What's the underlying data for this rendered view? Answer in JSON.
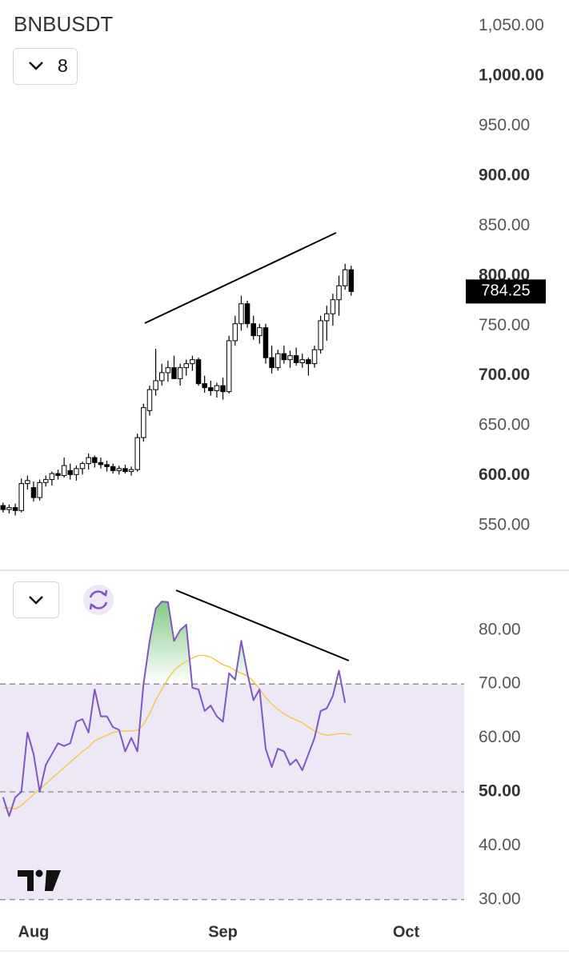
{
  "chart_data": [
    {
      "type": "candlestick",
      "title": "BNBUSDT",
      "indicator_count": "8",
      "categories": [
        null,
        null,
        null,
        null,
        null,
        "Aug",
        null,
        null,
        null,
        null,
        null,
        null,
        null,
        null,
        null,
        null,
        null,
        null,
        null,
        null,
        null,
        null,
        null,
        null,
        null,
        null,
        null,
        null,
        null,
        null,
        null,
        null,
        null,
        null,
        null,
        null,
        "Sep",
        null,
        null,
        null,
        null,
        null,
        null,
        null,
        null,
        null,
        null,
        null,
        null,
        null,
        null,
        null,
        null,
        null,
        null,
        null,
        null,
        null,
        null,
        null,
        null,
        null,
        null,
        null,
        null,
        null,
        "Oct"
      ],
      "open": [
        570,
        566,
        568,
        565,
        592,
        588,
        578,
        593,
        596,
        602,
        600,
        605,
        601,
        607,
        612,
        618,
        613,
        611,
        609,
        605,
        607,
        604,
        606,
        638,
        665,
        686,
        695,
        703,
        708,
        697,
        708,
        712,
        716,
        692,
        688,
        685,
        690,
        684,
        735,
        752,
        772,
        752,
        740,
        748,
        718,
        708,
        722,
        716,
        720,
        713,
        716,
        712,
        726,
        755,
        762,
        776,
        790,
        806,
        null,
        null,
        null,
        null,
        null,
        null,
        null,
        null,
        null
      ],
      "high": [
        573,
        571,
        572,
        597,
        600,
        594,
        596,
        600,
        604,
        606,
        618,
        612,
        610,
        614,
        622,
        620,
        618,
        615,
        612,
        610,
        611,
        609,
        642,
        672,
        690,
        727,
        712,
        715,
        720,
        712,
        716,
        720,
        718,
        700,
        695,
        693,
        698,
        740,
        760,
        780,
        775,
        760,
        752,
        752,
        730,
        726,
        730,
        725,
        728,
        722,
        718,
        730,
        760,
        770,
        782,
        800,
        812,
        810,
        null,
        null,
        null,
        null,
        null,
        null,
        null,
        null,
        null
      ],
      "low": [
        563,
        562,
        560,
        563,
        586,
        574,
        575,
        589,
        590,
        596,
        598,
        596,
        595,
        601,
        606,
        608,
        607,
        604,
        602,
        601,
        602,
        600,
        604,
        634,
        660,
        680,
        690,
        694,
        698,
        690,
        700,
        705,
        690,
        683,
        680,
        678,
        676,
        682,
        730,
        745,
        748,
        736,
        732,
        712,
        702,
        705,
        712,
        708,
        710,
        708,
        700,
        708,
        722,
        735,
        750,
        760,
        786,
        780,
        null,
        null,
        null,
        null,
        null,
        null,
        null,
        null,
        null
      ],
      "close": [
        566,
        568,
        565,
        592,
        595,
        578,
        593,
        596,
        602,
        600,
        610,
        601,
        607,
        612,
        618,
        613,
        611,
        609,
        605,
        607,
        604,
        606,
        638,
        668,
        686,
        695,
        703,
        708,
        697,
        708,
        712,
        716,
        692,
        688,
        685,
        690,
        684,
        735,
        752,
        772,
        752,
        740,
        748,
        718,
        708,
        722,
        716,
        720,
        713,
        716,
        712,
        726,
        755,
        762,
        776,
        790,
        806,
        784.25,
        null,
        null,
        null,
        null,
        null,
        null,
        null,
        null,
        null
      ],
      "color_up": "#ffffff",
      "color_down": "#000000",
      "last_price": 784.25,
      "ylim": [
        506,
        1076
      ],
      "yticks": [
        {
          "value": 550,
          "label": "550.00"
        },
        {
          "value": 600,
          "label": "600.00",
          "bold": true
        },
        {
          "value": 650,
          "label": "650.00"
        },
        {
          "value": 700,
          "label": "700.00",
          "bold": true
        },
        {
          "value": 750,
          "label": "750.00"
        },
        {
          "value": 800,
          "label": "800.00",
          "bold": true
        },
        {
          "value": 850,
          "label": "850.00"
        },
        {
          "value": 900,
          "label": "900.00",
          "bold": true
        },
        {
          "value": 950,
          "label": "950.00"
        },
        {
          "value": 1000,
          "label": "1,000.00",
          "bold": true
        },
        {
          "value": 1050,
          "label": "1,050.00"
        }
      ]
    },
    {
      "type": "line",
      "series": [
        {
          "color": "#7e57c2",
          "values": [
            49,
            45.5,
            49,
            50,
            61,
            57,
            50,
            55,
            57,
            59,
            58.5,
            59,
            63,
            63.5,
            61,
            69,
            64,
            64,
            62,
            61.5,
            57.5,
            60,
            57.5,
            70,
            78,
            84,
            85.3,
            85.2,
            78,
            80,
            81,
            69.3,
            69,
            65,
            66,
            64,
            63,
            72,
            70.8,
            78,
            72,
            67,
            69,
            58,
            54.6,
            58,
            57.5,
            55,
            56,
            54,
            57,
            60,
            65,
            65.5,
            67.8,
            72.5,
            66.5,
            null,
            null,
            null,
            null,
            null,
            null,
            null,
            null,
            null,
            null
          ]
        },
        {
          "color": "#f5c84c",
          "values": [
            47,
            47,
            46.8,
            47.5,
            48.5,
            49.5,
            50.5,
            51.5,
            52.5,
            53.5,
            54.5,
            55.5,
            56.5,
            57.5,
            58.3,
            59.5,
            60,
            60.5,
            61,
            61.2,
            61.3,
            61.3,
            61.4,
            62.5,
            64.5,
            67,
            69,
            71,
            72.5,
            73.5,
            74.2,
            74.8,
            75.3,
            75.3,
            75,
            74.3,
            73.6,
            73.2,
            72.5,
            72,
            71.5,
            70.5,
            69,
            67.5,
            66.3,
            65.3,
            64.5,
            63.8,
            63.3,
            62.8,
            62,
            61.3,
            60.8,
            60.5,
            60.6,
            60.8,
            60.8,
            60.6,
            null,
            null,
            null,
            null,
            null,
            null,
            null,
            null,
            null
          ]
        }
      ],
      "band": [
        30,
        70
      ],
      "band_color": "#ede7f6",
      "levels": [
        30,
        50,
        70
      ],
      "overbought_fill": "#5cb85c",
      "ylim": [
        27,
        91.1
      ],
      "yticks": [
        {
          "value": 30,
          "label": "30.00"
        },
        {
          "value": 40,
          "label": "40.00"
        },
        {
          "value": 50,
          "label": "50.00",
          "bold": true
        },
        {
          "value": 60,
          "label": "60.00"
        },
        {
          "value": 70,
          "label": "70.00"
        },
        {
          "value": 80,
          "label": "80.00"
        }
      ]
    }
  ]
}
